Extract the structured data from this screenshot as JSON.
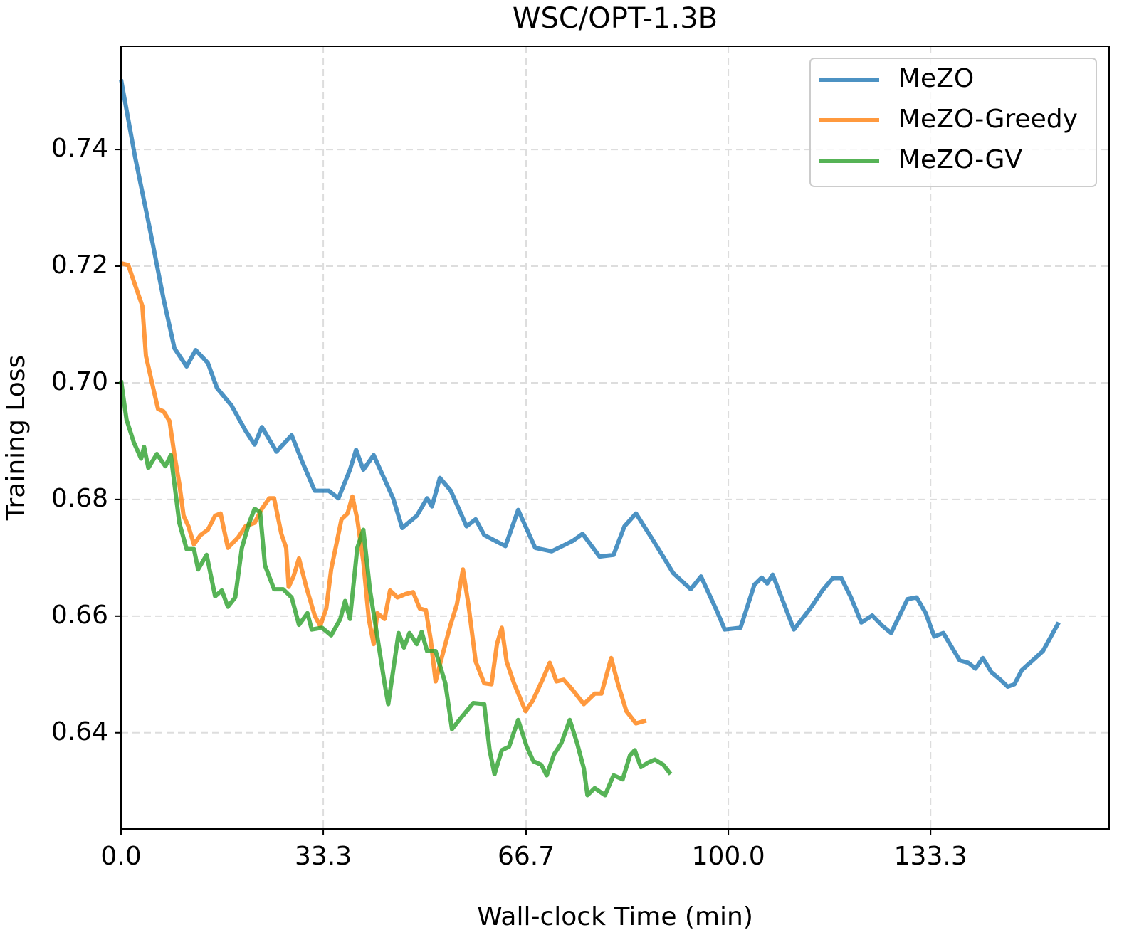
{
  "chart_data": {
    "type": "line",
    "title": "WSC/OPT-1.3B",
    "x_label": "Wall-clock Time (min)",
    "y_label": "Training Loss",
    "xlim": [
      0,
      162.7
    ],
    "ylim": [
      0.6235,
      0.7577
    ],
    "xticks": [
      {
        "value": 0,
        "label": "0.0"
      },
      33.3,
      66.7,
      {
        "value": 100,
        "label": "100.0"
      },
      133.3
    ],
    "yticks": [
      0.64,
      0.66,
      0.68,
      {
        "value": 0.7,
        "label": "0.70"
      },
      0.72,
      0.74
    ],
    "grid": true,
    "legend": "upper right",
    "series": [
      {
        "name": "MeZO",
        "color": "#1f77b4",
        "x": [
          0,
          2.3,
          4.7,
          7.0,
          8.8,
          10.8,
          12.3,
          14.3,
          15.8,
          18.2,
          20.5,
          22.0,
          23.2,
          25.6,
          28.1,
          29.9,
          31.9,
          34.2,
          35.8,
          37.7,
          38.7,
          39.9,
          41.6,
          44.8,
          46.3,
          48.7,
          50.4,
          51.2,
          52.5,
          54.3,
          56.9,
          58.4,
          59.8,
          63.3,
          65.4,
          68.2,
          70.9,
          74.4,
          76.0,
          78.8,
          81.1,
          82.9,
          84.8,
          87.3,
          89.1,
          90.9,
          93.8,
          95.5,
          98.2,
          99.4,
          102.0,
          104.3,
          105.5,
          106.4,
          107.3,
          110.8,
          113.7,
          115.5,
          117.2,
          118.6,
          120.2,
          121.9,
          123.7,
          125.4,
          126.8,
          129.5,
          131.0,
          132.5,
          133.9,
          135.4,
          138.1,
          139.5,
          140.7,
          141.9,
          143.3,
          144.8,
          146.0,
          147.1,
          148.3,
          151.8,
          154.4
        ],
        "values": [
          0.752,
          0.7388,
          0.7266,
          0.7144,
          0.7059,
          0.7028,
          0.7056,
          0.7034,
          0.6991,
          0.6961,
          0.6918,
          0.6894,
          0.6924,
          0.6882,
          0.691,
          0.6863,
          0.6815,
          0.6815,
          0.6802,
          0.6851,
          0.6885,
          0.6851,
          0.6876,
          0.6802,
          0.6751,
          0.6772,
          0.6802,
          0.6788,
          0.6837,
          0.6815,
          0.6754,
          0.6766,
          0.6739,
          0.672,
          0.6782,
          0.6717,
          0.6711,
          0.6729,
          0.6741,
          0.6702,
          0.6705,
          0.6754,
          0.6776,
          0.6735,
          0.6705,
          0.6674,
          0.6646,
          0.6668,
          0.6607,
          0.6577,
          0.658,
          0.6654,
          0.6666,
          0.6656,
          0.6671,
          0.6577,
          0.6616,
          0.6644,
          0.6665,
          0.6665,
          0.6632,
          0.6589,
          0.6601,
          0.6583,
          0.6571,
          0.6629,
          0.6632,
          0.6605,
          0.6565,
          0.6571,
          0.6524,
          0.652,
          0.651,
          0.6528,
          0.6504,
          0.6491,
          0.6479,
          0.6483,
          0.6507,
          0.654,
          0.6589
        ]
      },
      {
        "name": "MeZO-Greedy",
        "color": "#ff7f0e",
        "x": [
          0,
          1.2,
          2.3,
          3.5,
          4.1,
          5.3,
          6.1,
          7.0,
          8.0,
          8.8,
          9.6,
          10.3,
          11.1,
          12.0,
          13.1,
          14.3,
          15.5,
          16.4,
          17.6,
          19.3,
          20.5,
          22.0,
          23.2,
          24.4,
          25.2,
          26.4,
          27.2,
          27.6,
          28.4,
          29.3,
          30.5,
          31.9,
          32.8,
          33.8,
          34.6,
          36.3,
          37.3,
          38.1,
          38.9,
          39.9,
          40.8,
          41.6,
          42.2,
          43.4,
          44.3,
          45.5,
          46.9,
          48.1,
          49.2,
          50.2,
          51.0,
          51.8,
          52.8,
          54.2,
          55.3,
          56.3,
          57.2,
          58.4,
          59.8,
          61.0,
          61.9,
          62.7,
          63.5,
          64.7,
          66.6,
          67.8,
          69.4,
          70.6,
          71.7,
          72.9,
          74.4,
          76.2,
          78.0,
          79.1,
          80.7,
          81.8,
          83.2,
          84.8,
          86.5
        ],
        "values": [
          0.7205,
          0.7202,
          0.7168,
          0.7132,
          0.7046,
          0.6991,
          0.6955,
          0.6951,
          0.6934,
          0.6876,
          0.6827,
          0.6772,
          0.6754,
          0.6723,
          0.6739,
          0.6748,
          0.6772,
          0.6776,
          0.6717,
          0.6735,
          0.6754,
          0.676,
          0.6784,
          0.6802,
          0.6802,
          0.6741,
          0.6717,
          0.665,
          0.6668,
          0.6699,
          0.665,
          0.6601,
          0.6583,
          0.6613,
          0.668,
          0.6766,
          0.6776,
          0.6805,
          0.6766,
          0.6693,
          0.6595,
          0.6552,
          0.6605,
          0.6595,
          0.6644,
          0.6632,
          0.6638,
          0.6641,
          0.6613,
          0.661,
          0.6559,
          0.6488,
          0.6528,
          0.6583,
          0.662,
          0.668,
          0.662,
          0.6522,
          0.6485,
          0.6483,
          0.6552,
          0.658,
          0.6522,
          0.6485,
          0.6437,
          0.6455,
          0.6491,
          0.652,
          0.6488,
          0.6491,
          0.6473,
          0.6449,
          0.6467,
          0.6467,
          0.6528,
          0.6485,
          0.6437,
          0.6416,
          0.6421
        ]
      },
      {
        "name": "MeZO-GV",
        "color": "#2ca02c",
        "x": [
          0,
          0.9,
          2.1,
          3.3,
          3.8,
          4.5,
          5.9,
          7.3,
          8.2,
          9.1,
          9.6,
          10.8,
          12.0,
          12.7,
          14.1,
          15.5,
          16.6,
          17.6,
          18.8,
          19.9,
          21.1,
          22.0,
          22.9,
          23.7,
          25.2,
          26.7,
          28.1,
          29.3,
          30.7,
          31.4,
          33.1,
          34.6,
          36.1,
          36.9,
          37.7,
          38.9,
          39.9,
          41.0,
          42.2,
          43.4,
          44.0,
          45.7,
          46.6,
          47.5,
          48.7,
          49.5,
          50.4,
          51.8,
          53.4,
          54.5,
          55.7,
          56.9,
          58.0,
          59.8,
          60.7,
          61.5,
          62.7,
          63.9,
          65.4,
          66.8,
          67.9,
          69.2,
          70.1,
          71.3,
          72.5,
          73.9,
          75.1,
          76.2,
          76.8,
          78.0,
          79.7,
          81.1,
          82.6,
          83.8,
          84.6,
          85.6,
          86.8,
          87.9,
          89.3,
          90.5
        ],
        "values": [
          0.7004,
          0.6937,
          0.6898,
          0.687,
          0.689,
          0.6854,
          0.6878,
          0.6857,
          0.6876,
          0.6802,
          0.676,
          0.6715,
          0.6715,
          0.668,
          0.6705,
          0.6634,
          0.6644,
          0.6616,
          0.6632,
          0.6717,
          0.676,
          0.6784,
          0.6778,
          0.6687,
          0.6646,
          0.6646,
          0.6632,
          0.6585,
          0.6605,
          0.6577,
          0.658,
          0.6567,
          0.6595,
          0.6626,
          0.6595,
          0.6717,
          0.6748,
          0.6644,
          0.6565,
          0.6485,
          0.6449,
          0.6571,
          0.6546,
          0.6571,
          0.6552,
          0.6573,
          0.654,
          0.654,
          0.6485,
          0.6406,
          0.6422,
          0.6437,
          0.6451,
          0.6449,
          0.637,
          0.6329,
          0.637,
          0.6376,
          0.6422,
          0.6376,
          0.6351,
          0.6345,
          0.6327,
          0.6363,
          0.6382,
          0.6422,
          0.6382,
          0.6339,
          0.6293,
          0.6305,
          0.6293,
          0.6327,
          0.632,
          0.6361,
          0.637,
          0.6341,
          0.6349,
          0.6354,
          0.6345,
          0.6329
        ]
      }
    ]
  }
}
